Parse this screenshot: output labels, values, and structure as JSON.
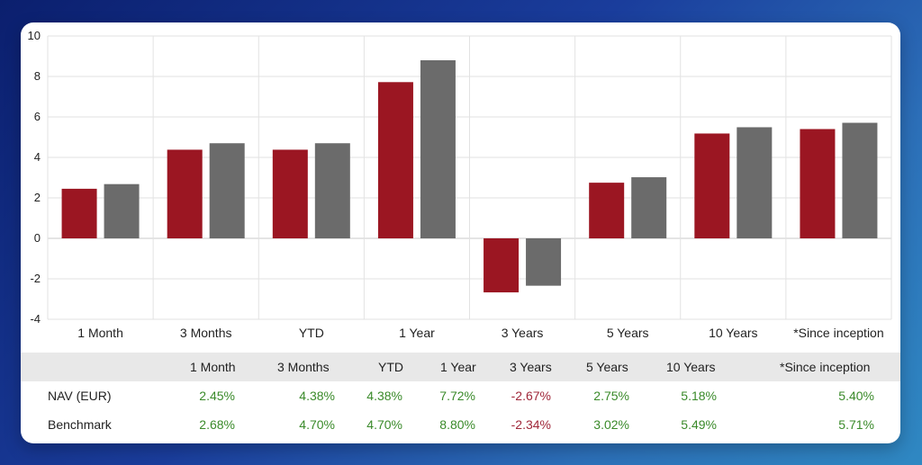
{
  "chart_data": {
    "type": "bar",
    "categories": [
      "1 Month",
      "3 Months",
      "YTD",
      "1 Year",
      "3 Years",
      "5 Years",
      "10 Years",
      "*Since inception"
    ],
    "series": [
      {
        "name": "NAV (EUR)",
        "values": [
          2.45,
          4.38,
          4.38,
          7.72,
          -2.67,
          2.75,
          5.18,
          5.4
        ]
      },
      {
        "name": "Benchmark",
        "values": [
          2.68,
          4.7,
          4.7,
          8.8,
          -2.34,
          3.02,
          5.49,
          5.71
        ]
      }
    ],
    "ylim": [
      -4,
      10
    ],
    "yticks": [
      10,
      8,
      6,
      4,
      2,
      0,
      -2,
      -4
    ],
    "grid": true,
    "colors": [
      "#9b1622",
      "#6b6b6b"
    ]
  },
  "table": {
    "headers": [
      "1 Month",
      "3 Months",
      "YTD",
      "1 Year",
      "3 Years",
      "5 Years",
      "10 Years",
      "*Since inception"
    ],
    "rows": [
      {
        "label": "NAV (EUR)",
        "values": [
          "2.45%",
          "4.38%",
          "4.38%",
          "7.72%",
          "-2.67%",
          "2.75%",
          "5.18%",
          "5.40%"
        ]
      },
      {
        "label": "Benchmark",
        "values": [
          "2.68%",
          "4.70%",
          "4.70%",
          "8.80%",
          "-2.34%",
          "3.02%",
          "5.49%",
          "5.71%"
        ]
      }
    ],
    "colors": {
      "positive": "#3a8a2a",
      "negative": "#a0283a"
    }
  }
}
